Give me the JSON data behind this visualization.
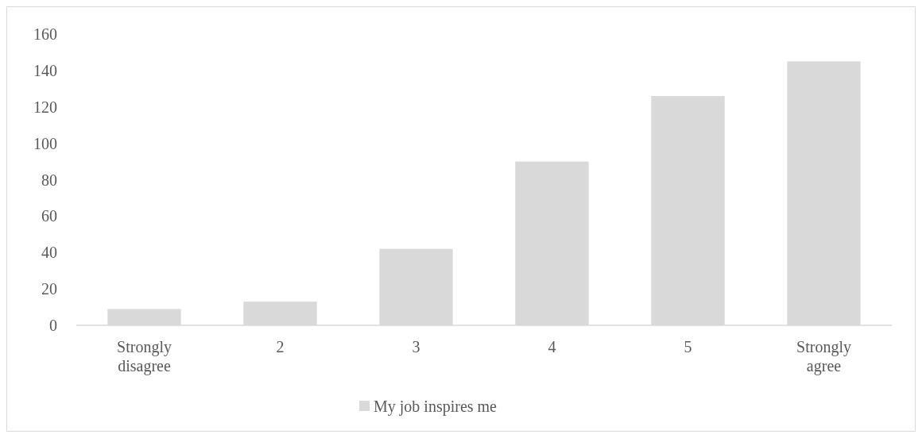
{
  "chart_data": {
    "type": "bar",
    "categories": [
      "Strongly disagree",
      "2",
      "3",
      "4",
      "5",
      "Strongly agree"
    ],
    "series": [
      {
        "name": "My job inspires me",
        "color": "#d9d9d9",
        "values": [
          9,
          13,
          42,
          90,
          126,
          145
        ]
      }
    ],
    "ylim": [
      0,
      160
    ],
    "yticks": [
      0,
      20,
      40,
      60,
      80,
      100,
      120,
      140,
      160
    ],
    "grid": false,
    "legend": "bottom"
  }
}
